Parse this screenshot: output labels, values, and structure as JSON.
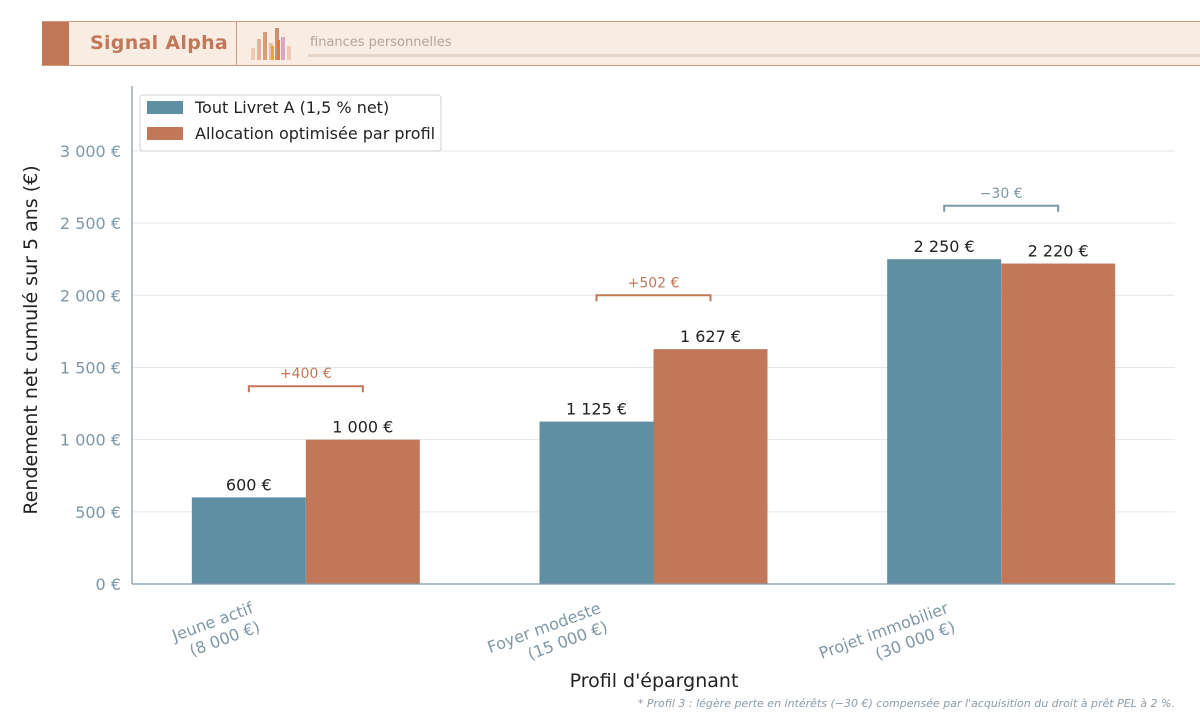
{
  "header": {
    "brand": "Signal Alpha",
    "tagline": "finances personnelles",
    "logo_icon": "bar-chart-books-icon"
  },
  "chart_data": {
    "type": "bar",
    "xlabel": "Profil d'épargnant",
    "ylabel": "Rendement net cumulé sur 5 ans (€)",
    "ylim": [
      0,
      3450
    ],
    "yticks": [
      {
        "value": 0,
        "label": "0 €"
      },
      {
        "value": 500,
        "label": "500 €"
      },
      {
        "value": 1000,
        "label": "1 000 €"
      },
      {
        "value": 1500,
        "label": "1 500 €"
      },
      {
        "value": 2000,
        "label": "2 000 €"
      },
      {
        "value": 2500,
        "label": "2 500 €"
      },
      {
        "value": 3000,
        "label": "3 000 €"
      }
    ],
    "grid": true,
    "legend_position": "top-left",
    "categories": [
      {
        "line1": "Jeune actif",
        "line2": "(8 000 €)"
      },
      {
        "line1": "Foyer modeste",
        "line2": "(15 000 €)"
      },
      {
        "line1": "Projet immobilier",
        "line2": "(30 000 €)"
      }
    ],
    "series": [
      {
        "name": "Tout Livret A (1,5 % net)",
        "color": "#5e8fa3",
        "values": [
          600,
          1125,
          2250
        ],
        "labels": [
          "600 €",
          "1 125 €",
          "2 250 €"
        ]
      },
      {
        "name": "Allocation optimisée par profil",
        "color": "#c27858",
        "values": [
          1000,
          1627,
          2220
        ],
        "labels": [
          "1 000 €",
          "1 627 €",
          "2 220 €"
        ]
      }
    ],
    "annotations": [
      {
        "category": 0,
        "text": "+400 €",
        "color": "#c27858",
        "level": 1370
      },
      {
        "category": 1,
        "text": "+502 €",
        "color": "#c27858",
        "level": 2000
      },
      {
        "category": 2,
        "text": "−30 €",
        "color": "#7e97a6",
        "level": 2620
      }
    ]
  },
  "footnote": "* Profil 3 : légère perte en intérêts (−30 €) compensée par l'acquisition du droit à prêt PEL à 2 %."
}
